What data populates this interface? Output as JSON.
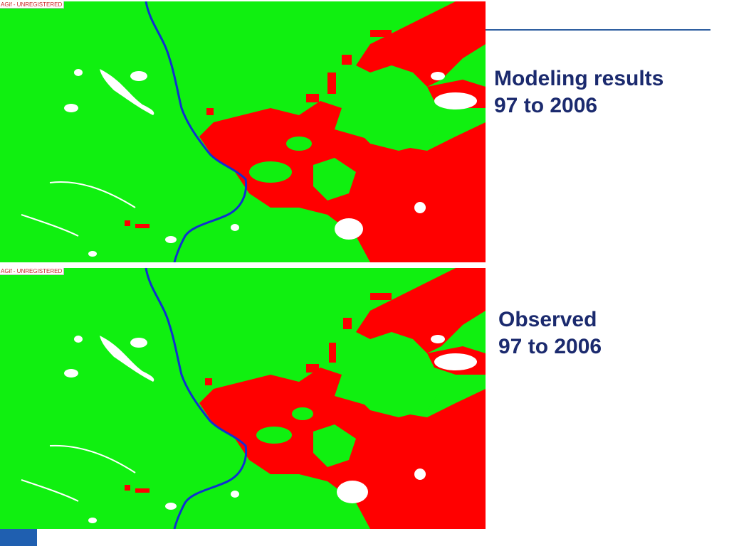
{
  "maps": [
    {
      "id": "model",
      "watermark": "AGif - UNREGISTERED"
    },
    {
      "id": "observed",
      "watermark": "AGif - UNREGISTERED"
    }
  ],
  "captions": {
    "model": {
      "line1": "Modeling results",
      "line2": "97 to 2006"
    },
    "observed": {
      "line1": "Observed",
      "line2": "97 to 2006"
    }
  },
  "colors": {
    "forest": "#10f010",
    "deforested": "#ff0000",
    "river": "#1030d0",
    "non_forest": "#ffffff",
    "caption_text": "#1b2a6e",
    "accent_rule": "#2e5fa0",
    "corner_block": "#1f5fb0"
  }
}
